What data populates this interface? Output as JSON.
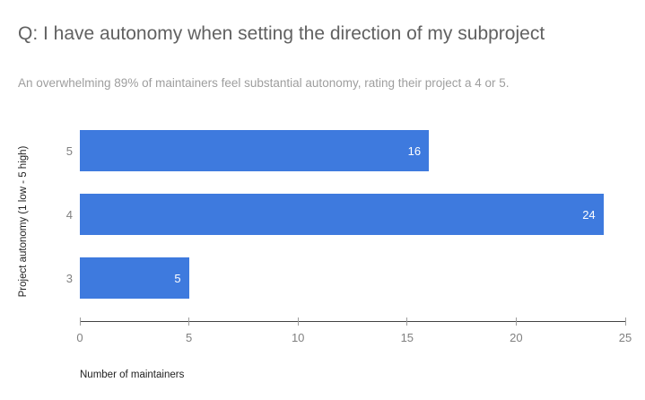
{
  "header": {
    "title": "Q: I have autonomy when setting the direction of my subproject",
    "subtitle": "An overwhelming 89% of maintainers feel substantial autonomy, rating their project a 4 or 5."
  },
  "chart_data": {
    "type": "bar",
    "orientation": "horizontal",
    "categories": [
      "5",
      "4",
      "3"
    ],
    "values": [
      16,
      24,
      5
    ],
    "value_labels": [
      "16",
      "24",
      "5"
    ],
    "title": "Q: I have autonomy when setting the direction of my subproject",
    "subtitle": "An overwhelming 89% of maintainers feel substantial autonomy, rating their project a 4 or 5.",
    "xlabel": "Number of maintainers",
    "ylabel": "Project autonomy (1 low - 5 high)",
    "xlim": [
      0,
      25
    ],
    "xticks": [
      0,
      5,
      10,
      15,
      20,
      25
    ],
    "grid": false,
    "legend": "none"
  },
  "colors": {
    "bar": "#3e7ade",
    "value_label": "#ffffff",
    "title": "#616161",
    "subtitle": "#9e9e9e",
    "axis_line": "#424242",
    "tick_mark": "#9e9e9e",
    "tick_label": "#808080",
    "category_label": "#808080",
    "axis_title": "#212121",
    "background": "#ffffff"
  }
}
